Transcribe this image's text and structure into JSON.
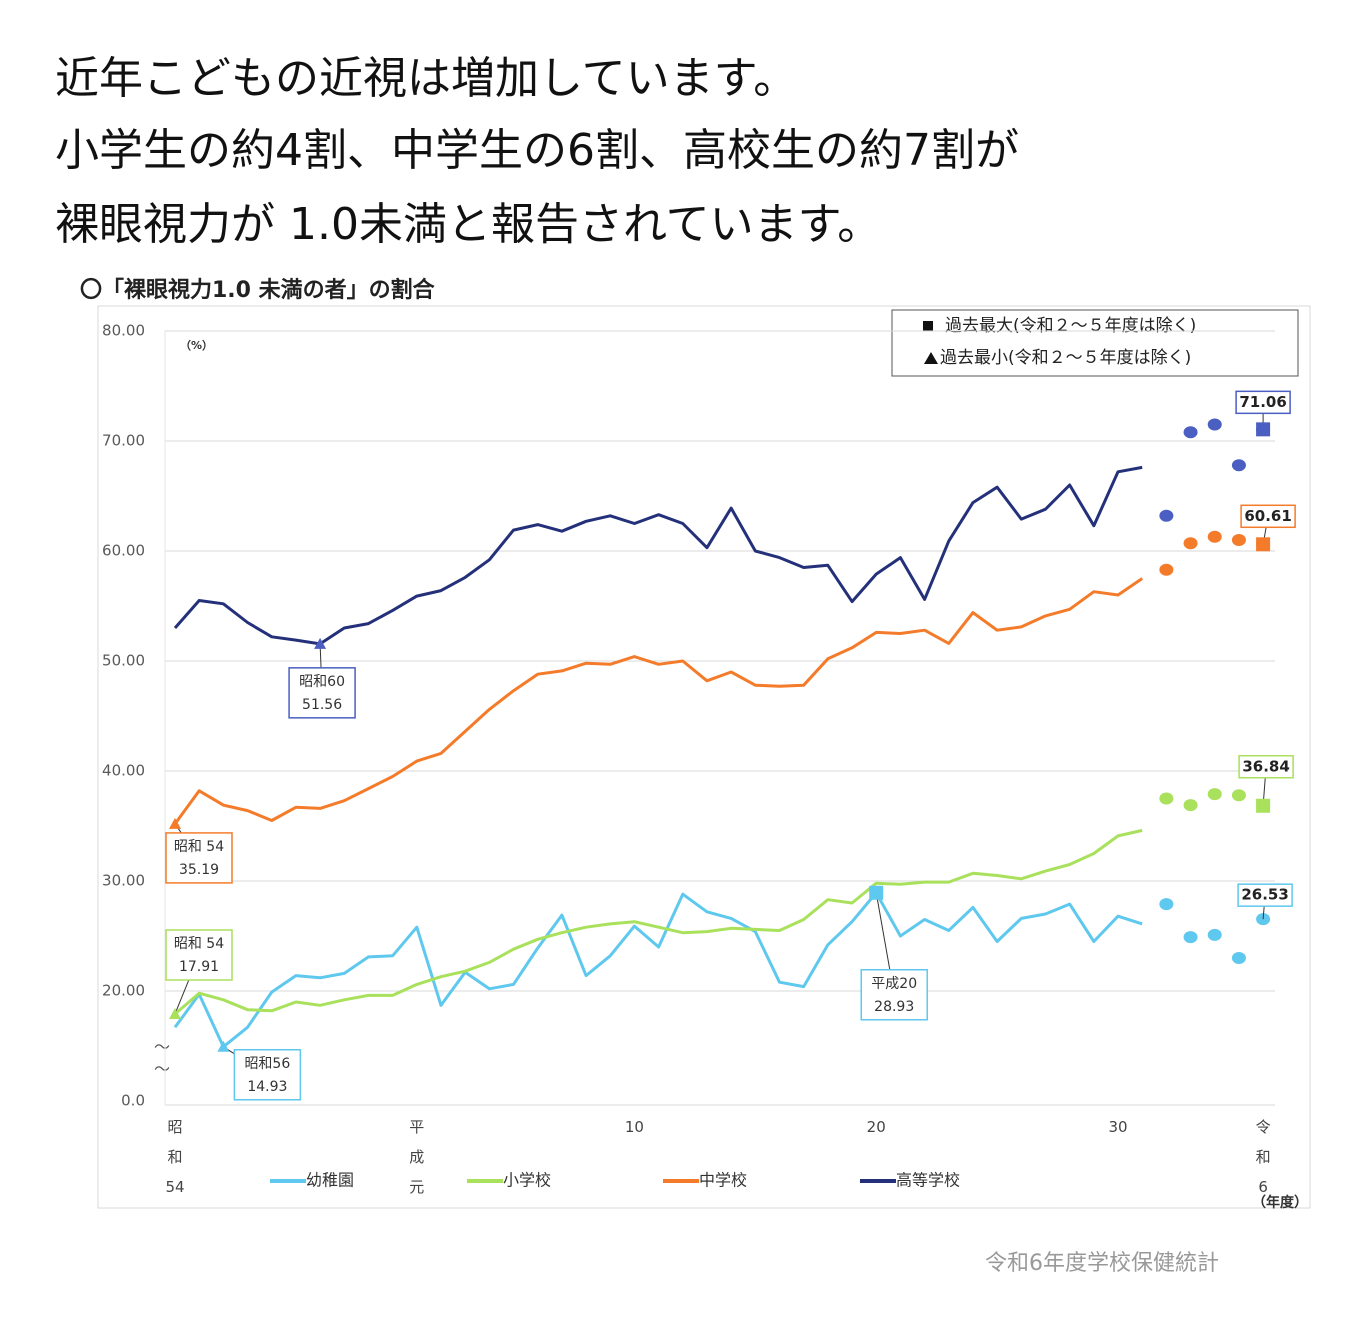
{
  "chart_data": {
    "type": "line",
    "title_lines": [
      "近年こどもの近視は増加しています。",
      "小学生の約4割、中学生の6割、高校生の約7割が",
      "裸眼視力が 1.0未満と報告されています。"
    ],
    "subtitle": "〇「裸眼視力1.0 未満の者」の割合",
    "y_unit": "（%）",
    "x_unit": "（年度）",
    "source": "令和6年度学校保健統計",
    "legend_notes": [
      "過去最大(令和２～５年度は除く)",
      "過去最小(令和２～５年度は除く)"
    ],
    "break_mark": "～",
    "categories": [
      "昭和54",
      null,
      null,
      null,
      null,
      null,
      null,
      null,
      null,
      null,
      "平成元",
      null,
      null,
      null,
      null,
      null,
      null,
      null,
      null,
      "10",
      null,
      null,
      null,
      null,
      null,
      null,
      null,
      null,
      null,
      "20",
      null,
      null,
      null,
      null,
      null,
      null,
      null,
      null,
      null,
      "30",
      null,
      null,
      null,
      null,
      null,
      "令和6"
    ],
    "ylim": [
      0,
      80
    ],
    "axis_break": [
      0,
      10
    ],
    "yticks": [
      {
        "value": 0,
        "label": "0.0"
      },
      {
        "value": 20,
        "label": "20.00"
      },
      {
        "value": 30,
        "label": "30.00"
      },
      {
        "value": 40,
        "label": "40.00"
      },
      {
        "value": 50,
        "label": "50.00"
      },
      {
        "value": 60,
        "label": "60.00"
      },
      {
        "value": 70,
        "label": "70.00"
      },
      {
        "value": 80,
        "label": "80.00"
      }
    ],
    "grid": true,
    "series": [
      {
        "name": "幼稚園",
        "color": "#5ec8ee",
        "marker_color": "#5ec8ee",
        "values": [
          16.7,
          19.7,
          14.93,
          16.7,
          19.9,
          21.4,
          21.2,
          21.6,
          23.1,
          23.2,
          25.8,
          18.7,
          21.7,
          20.2,
          20.6,
          23.9,
          26.9,
          21.4,
          23.2,
          25.9,
          24.0,
          28.8,
          27.2,
          26.6,
          25.4,
          20.8,
          20.4,
          24.2,
          26.3,
          28.93,
          25.0,
          26.5,
          25.5,
          27.6,
          24.5,
          26.6,
          27.0,
          27.9,
          24.5,
          26.8,
          26.1,
          null,
          null,
          null,
          null,
          null
        ],
        "marker_values": [
          null,
          null,
          null,
          null,
          null,
          null,
          null,
          null,
          null,
          null,
          null,
          null,
          null,
          null,
          null,
          null,
          null,
          null,
          null,
          null,
          null,
          null,
          null,
          null,
          null,
          null,
          null,
          null,
          null,
          null,
          null,
          null,
          null,
          null,
          null,
          null,
          null,
          null,
          null,
          null,
          null,
          27.9,
          24.9,
          25.1,
          23.0,
          26.53
        ]
      },
      {
        "name": "小学校",
        "color": "#a9e05c",
        "marker_color": "#a9e05c",
        "values": [
          17.91,
          19.8,
          19.2,
          18.3,
          18.2,
          19.0,
          18.7,
          19.2,
          19.6,
          19.6,
          20.6,
          21.3,
          21.8,
          22.6,
          23.8,
          24.7,
          25.3,
          25.8,
          26.1,
          26.3,
          25.8,
          25.3,
          25.4,
          25.7,
          25.6,
          25.5,
          26.5,
          28.3,
          28.0,
          29.8,
          29.7,
          29.9,
          29.9,
          30.7,
          30.5,
          30.2,
          30.9,
          31.5,
          32.5,
          34.1,
          34.6,
          null,
          null,
          null,
          null,
          null
        ],
        "marker_values": [
          null,
          null,
          null,
          null,
          null,
          null,
          null,
          null,
          null,
          null,
          null,
          null,
          null,
          null,
          null,
          null,
          null,
          null,
          null,
          null,
          null,
          null,
          null,
          null,
          null,
          null,
          null,
          null,
          null,
          null,
          null,
          null,
          null,
          null,
          null,
          null,
          null,
          null,
          null,
          null,
          null,
          37.5,
          36.9,
          37.9,
          37.8,
          36.84
        ]
      },
      {
        "name": "中学校",
        "color": "#f47b2a",
        "marker_color": "#f47b2a",
        "values": [
          35.19,
          38.2,
          36.9,
          36.4,
          35.5,
          36.7,
          36.6,
          37.3,
          38.4,
          39.5,
          40.9,
          41.6,
          43.6,
          45.6,
          47.3,
          48.8,
          49.1,
          49.8,
          49.7,
          50.4,
          49.7,
          50.0,
          48.2,
          49.0,
          47.8,
          47.7,
          47.8,
          50.2,
          51.2,
          52.6,
          52.5,
          52.8,
          51.6,
          54.4,
          52.8,
          53.1,
          54.1,
          54.7,
          56.3,
          56.0,
          57.5,
          null,
          null,
          null,
          null,
          null
        ],
        "marker_values": [
          null,
          null,
          null,
          null,
          null,
          null,
          null,
          null,
          null,
          null,
          null,
          null,
          null,
          null,
          null,
          null,
          null,
          null,
          null,
          null,
          null,
          null,
          null,
          null,
          null,
          null,
          null,
          null,
          null,
          null,
          null,
          null,
          null,
          null,
          null,
          null,
          null,
          null,
          null,
          null,
          null,
          58.3,
          60.7,
          61.3,
          61.0,
          60.61
        ]
      },
      {
        "name": "高等学校",
        "color": "#24317a",
        "marker_color": "#4a5fc1",
        "values": [
          53.0,
          55.5,
          55.2,
          53.5,
          52.2,
          51.9,
          51.56,
          53.0,
          53.4,
          54.6,
          55.9,
          56.4,
          57.6,
          59.2,
          61.9,
          62.4,
          61.8,
          62.7,
          63.2,
          62.5,
          63.3,
          62.5,
          60.3,
          63.9,
          60.0,
          59.4,
          58.5,
          58.7,
          55.4,
          57.9,
          59.4,
          55.6,
          60.9,
          64.4,
          65.8,
          62.9,
          63.8,
          66.0,
          62.3,
          67.2,
          67.6,
          null,
          null,
          null,
          null,
          null
        ],
        "marker_values": [
          null,
          null,
          null,
          null,
          null,
          null,
          null,
          null,
          null,
          null,
          null,
          null,
          null,
          null,
          null,
          null,
          null,
          null,
          null,
          null,
          null,
          null,
          null,
          null,
          null,
          null,
          null,
          null,
          null,
          null,
          null,
          null,
          null,
          null,
          null,
          null,
          null,
          null,
          null,
          null,
          null,
          63.2,
          70.8,
          71.5,
          67.8,
          71.06
        ]
      }
    ],
    "annotations": [
      {
        "kind": "min",
        "label": "昭和60",
        "value": 51.56
      },
      {
        "kind": "min",
        "label": "昭和 54",
        "value": 35.19
      },
      {
        "kind": "min",
        "label": "昭和 54",
        "value": 17.91
      },
      {
        "kind": "min",
        "label": "昭和56",
        "value": 14.93
      },
      {
        "kind": "max",
        "label": "平成20",
        "value": 28.93
      },
      {
        "kind": "max",
        "value": 71.06
      },
      {
        "kind": "max",
        "value": 60.61
      },
      {
        "kind": "max",
        "value": 36.84
      },
      {
        "value": 26.53
      }
    ]
  }
}
